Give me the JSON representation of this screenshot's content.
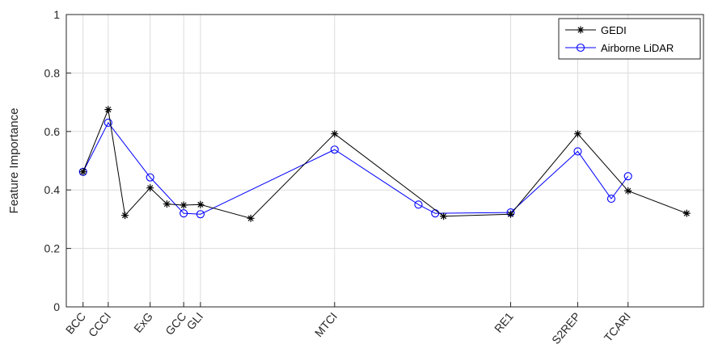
{
  "chart_data": {
    "type": "line",
    "ylabel": "Feature Importance",
    "ylim": [
      0,
      1
    ],
    "yticks": [
      "0",
      "0.2",
      "0.4",
      "0.6",
      "0.8",
      "1"
    ],
    "xlim": [
      0,
      38
    ],
    "xtick_labels": [
      {
        "label": "BCC",
        "x": 1
      },
      {
        "label": "CCCI",
        "x": 2.5
      },
      {
        "label": "ExG",
        "x": 5
      },
      {
        "label": "GCC",
        "x": 7
      },
      {
        "label": "GLI",
        "x": 8
      },
      {
        "label": "MTCI",
        "x": 16
      },
      {
        "label": "RE1",
        "x": 26.5
      },
      {
        "label": "S2REP",
        "x": 30.5
      },
      {
        "label": "TCARI",
        "x": 33.5
      }
    ],
    "grid": true,
    "legend_position": "top-right",
    "series": [
      {
        "name": "GEDI",
        "color": "#000000",
        "marker": "asterisk",
        "points": [
          [
            1,
            0.462
          ],
          [
            2.5,
            0.675
          ],
          [
            3.5,
            0.313
          ],
          [
            5,
            0.407
          ],
          [
            6,
            0.352
          ],
          [
            7,
            0.348
          ],
          [
            8,
            0.35
          ],
          [
            11,
            0.303
          ],
          [
            16,
            0.592
          ],
          [
            22.5,
            0.31
          ],
          [
            26.5,
            0.317
          ],
          [
            30.5,
            0.592
          ],
          [
            33.5,
            0.397
          ],
          [
            37,
            0.32
          ]
        ]
      },
      {
        "name": "Airborne LiDAR",
        "color": "#0000ff",
        "marker": "circle",
        "points": [
          [
            1,
            0.462
          ],
          [
            2.5,
            0.63
          ],
          [
            5,
            0.443
          ],
          [
            7,
            0.32
          ],
          [
            8,
            0.317
          ],
          [
            16,
            0.538
          ],
          [
            21,
            0.35
          ],
          [
            22,
            0.32
          ],
          [
            26.5,
            0.323
          ],
          [
            30.5,
            0.532
          ],
          [
            32.5,
            0.37
          ],
          [
            33.5,
            0.447
          ]
        ]
      }
    ]
  }
}
